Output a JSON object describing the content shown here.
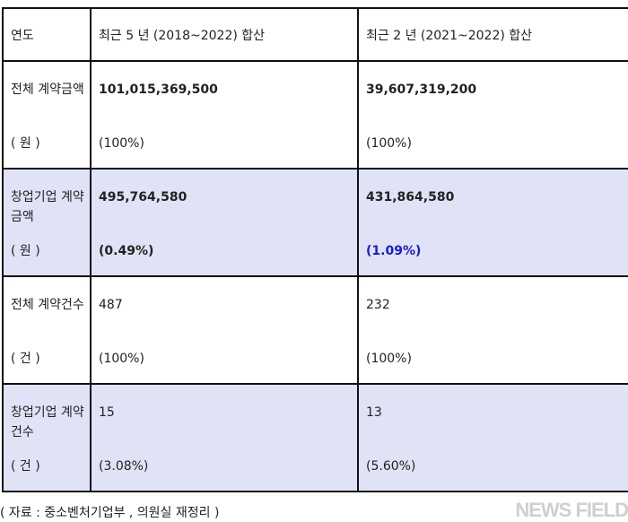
{
  "table": {
    "headers": [
      "연도",
      "최근 5 년 (2018~2022) 합산",
      "최근 2 년 (2021~2022) 합산"
    ],
    "rows": [
      {
        "label": "전체 계약금액",
        "unit": "( 원 )",
        "v1": "101,015,369,500",
        "p1": "(100%)",
        "v2": "39,607,319,200",
        "p2": "(100%)"
      },
      {
        "label": "창업기업 계약금액",
        "unit": "( 원 )",
        "v1": "495,764,580",
        "p1": "(0.49%)",
        "v2": "431,864,580",
        "p2": "(1.09%)"
      },
      {
        "label": "전체 계약건수",
        "unit": "( 건 )",
        "v1": "487",
        "p1": "(100%)",
        "v2": "232",
        "p2": "(100%)"
      },
      {
        "label": "창업기업 계약건수",
        "unit": "( 건 )",
        "v1": "15",
        "p1": "(3.08%)",
        "v2": "13",
        "p2": "(5.60%)"
      }
    ]
  },
  "caption": "( 자료 : 중소벤처기업부 , 의원실 재정리 )",
  "watermark": "NEWS FIELD",
  "colors": {
    "shade": "#dfe3f5",
    "highlight": "#1a1ad6",
    "border": "#111111"
  }
}
